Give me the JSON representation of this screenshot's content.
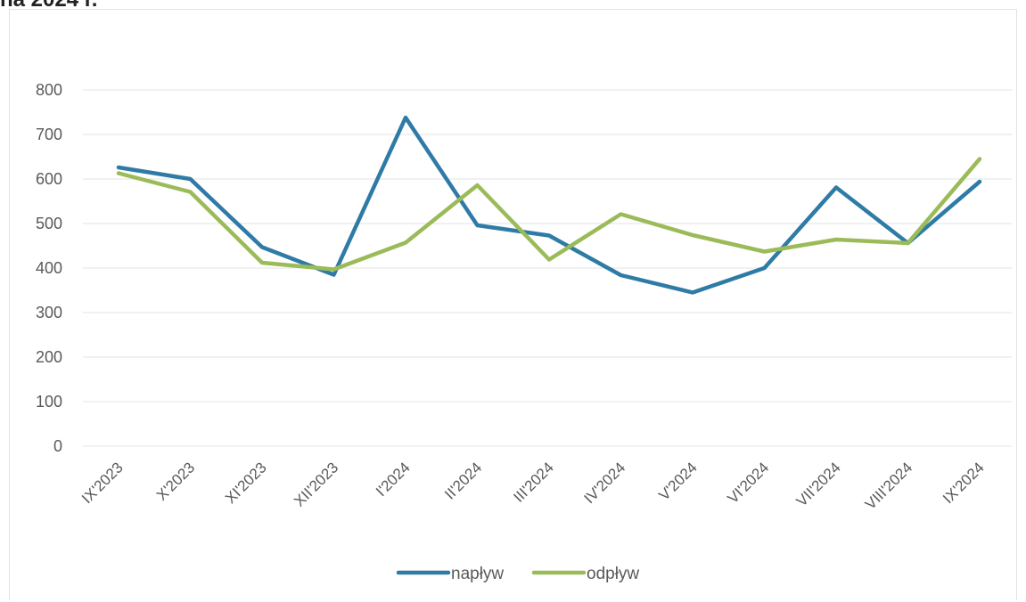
{
  "heading": "na 2024 r.",
  "chart_data": {
    "type": "line",
    "title": "",
    "xlabel": "",
    "ylabel": "",
    "ylim": [
      0,
      800
    ],
    "yticks": [
      0,
      100,
      200,
      300,
      400,
      500,
      600,
      700,
      800
    ],
    "categories": [
      "IX'2023",
      "X'2023",
      "XI'2023",
      "XII'2023",
      "I'2024",
      "II'2024",
      "III'2024",
      "IV'2024",
      "V'2024",
      "VI'2024",
      "VII'2024",
      "VIII'2024",
      "IX'2024"
    ],
    "series": [
      {
        "name": "napływ",
        "color": "#2E7BA6",
        "values": [
          626,
          600,
          447,
          385,
          738,
          496,
          473,
          384,
          345,
          400,
          581,
          456,
          594
        ]
      },
      {
        "name": "odpływ",
        "color": "#9BBB59",
        "values": [
          613,
          571,
          412,
          397,
          457,
          586,
          419,
          521,
          474,
          437,
          464,
          456,
          645
        ]
      }
    ],
    "grid": true,
    "legend": "bottom-center"
  }
}
